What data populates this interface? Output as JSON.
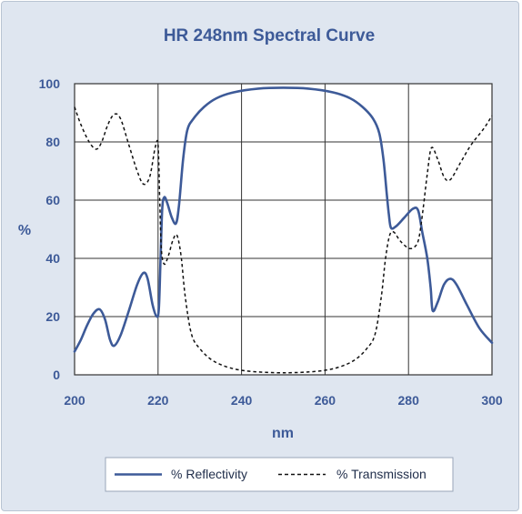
{
  "chart_data": {
    "type": "line",
    "title": "HR 248nm Spectral Curve",
    "xlabel": "nm",
    "ylabel": "%",
    "xlim": [
      200,
      300
    ],
    "ylim": [
      0,
      100
    ],
    "x_ticks": [
      "200",
      "220",
      "240",
      "260",
      "280",
      "300"
    ],
    "y_ticks": [
      "0",
      "20",
      "40",
      "60",
      "80",
      "100"
    ],
    "grid": true,
    "legend_position": "bottom-center",
    "colors": {
      "reflectivity": "#3d5a98",
      "transmission": "#111111",
      "axis_text": "#3d5a98"
    },
    "series": [
      {
        "name": "% Reflectivity",
        "style": "solid",
        "points": [
          [
            200,
            8
          ],
          [
            201.5,
            12
          ],
          [
            203,
            17
          ],
          [
            204.5,
            21
          ],
          [
            206,
            22.5
          ],
          [
            207.3,
            19
          ],
          [
            208.5,
            12
          ],
          [
            209.5,
            10
          ],
          [
            211,
            13.5
          ],
          [
            213,
            22
          ],
          [
            215,
            31
          ],
          [
            216.5,
            35
          ],
          [
            217.5,
            33
          ],
          [
            218.7,
            24
          ],
          [
            219.7,
            20
          ],
          [
            220.2,
            23
          ],
          [
            220.6,
            40
          ],
          [
            221,
            57
          ],
          [
            221.5,
            61
          ],
          [
            222.2,
            59
          ],
          [
            223.3,
            54
          ],
          [
            224.3,
            52
          ],
          [
            225,
            58
          ],
          [
            226,
            74
          ],
          [
            227,
            84
          ],
          [
            228.5,
            88
          ],
          [
            231,
            92
          ],
          [
            234,
            95
          ],
          [
            238,
            97
          ],
          [
            244,
            98.3
          ],
          [
            250,
            98.6
          ],
          [
            256,
            98.3
          ],
          [
            262,
            97
          ],
          [
            266,
            95
          ],
          [
            269,
            92
          ],
          [
            271.5,
            88
          ],
          [
            273,
            83
          ],
          [
            274,
            74
          ],
          [
            274.8,
            62
          ],
          [
            275.3,
            55
          ],
          [
            275.8,
            50.5
          ],
          [
            277,
            51
          ],
          [
            279,
            54
          ],
          [
            281,
            57
          ],
          [
            282.3,
            56.5
          ],
          [
            283.3,
            49
          ],
          [
            284.5,
            40
          ],
          [
            285.3,
            30
          ],
          [
            285.8,
            22
          ],
          [
            287,
            25
          ],
          [
            288.5,
            31
          ],
          [
            290,
            33
          ],
          [
            291.5,
            31
          ],
          [
            294,
            24
          ],
          [
            297,
            16
          ],
          [
            300,
            11
          ]
        ]
      },
      {
        "name": "% Transmission",
        "style": "dashed",
        "points": [
          [
            200,
            92
          ],
          [
            201.5,
            86
          ],
          [
            203.5,
            80
          ],
          [
            205.2,
            77.5
          ],
          [
            206.5,
            80
          ],
          [
            208,
            86
          ],
          [
            209.5,
            89.5
          ],
          [
            211,
            88
          ],
          [
            213,
            79
          ],
          [
            215,
            70
          ],
          [
            216.5,
            65.5
          ],
          [
            218,
            68
          ],
          [
            219.3,
            78
          ],
          [
            220,
            79
          ],
          [
            220.4,
            60
          ],
          [
            220.8,
            43
          ],
          [
            221.5,
            38
          ],
          [
            222.5,
            41
          ],
          [
            223.5,
            46
          ],
          [
            224.5,
            48
          ],
          [
            225.5,
            41
          ],
          [
            226.5,
            27
          ],
          [
            228,
            14
          ],
          [
            230,
            9
          ],
          [
            233,
            5
          ],
          [
            237,
            2.5
          ],
          [
            242,
            1.2
          ],
          [
            250,
            0.7
          ],
          [
            258,
            1.2
          ],
          [
            263,
            2.5
          ],
          [
            267,
            5
          ],
          [
            270,
            9
          ],
          [
            272,
            14
          ],
          [
            273.5,
            27
          ],
          [
            274.5,
            40
          ],
          [
            275.5,
            48
          ],
          [
            276.5,
            49
          ],
          [
            278,
            46
          ],
          [
            280,
            43.5
          ],
          [
            281.5,
            44
          ],
          [
            282.5,
            47
          ],
          [
            283.5,
            57
          ],
          [
            284.5,
            69
          ],
          [
            285.5,
            78
          ],
          [
            287,
            74
          ],
          [
            288.5,
            68
          ],
          [
            290,
            67
          ],
          [
            292.5,
            73
          ],
          [
            295,
            79
          ],
          [
            298,
            84.5
          ],
          [
            300,
            89
          ]
        ]
      }
    ]
  }
}
